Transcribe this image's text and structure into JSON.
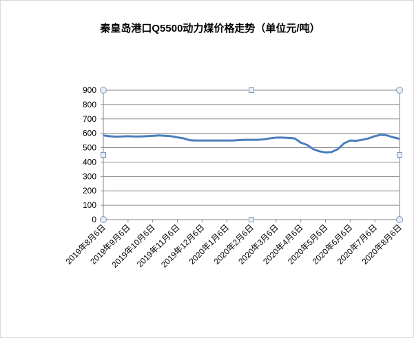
{
  "chart_data": {
    "type": "line",
    "title": "秦皇岛港口Q5500动力煤价格走势（单位元/吨）",
    "categories": [
      "2019年8月6日",
      null,
      null,
      null,
      "2019年9月6日",
      null,
      null,
      null,
      "2019年10月6日",
      null,
      null,
      null,
      "2019年11月6日",
      null,
      null,
      null,
      "2019年12月6日",
      null,
      null,
      null,
      "2020年1月6日",
      null,
      null,
      null,
      "2020年2月6日",
      null,
      null,
      null,
      "2020年3月6日",
      null,
      null,
      null,
      "2020年4月6日",
      null,
      null,
      null,
      "2020年5月6日",
      null,
      null,
      null,
      "2020年6月6日",
      null,
      null,
      null,
      "2020年7月6日",
      null,
      null,
      null,
      "2020年8月6日"
    ],
    "series": [
      {
        "color": "#4a7ebb",
        "values": [
          585,
          580,
          577,
          578,
          580,
          578,
          578,
          580,
          582,
          585,
          583,
          580,
          572,
          565,
          552,
          550,
          550,
          550,
          550,
          550,
          550,
          550,
          553,
          555,
          555,
          555,
          558,
          565,
          570,
          570,
          568,
          565,
          535,
          520,
          490,
          475,
          467,
          470,
          490,
          530,
          550,
          548,
          555,
          565,
          580,
          590,
          585,
          572,
          562
        ]
      }
    ],
    "ylim": [
      0,
      900
    ],
    "yticks": [
      0,
      100,
      200,
      300,
      400,
      500,
      600,
      700,
      800,
      900
    ],
    "grid": true
  }
}
